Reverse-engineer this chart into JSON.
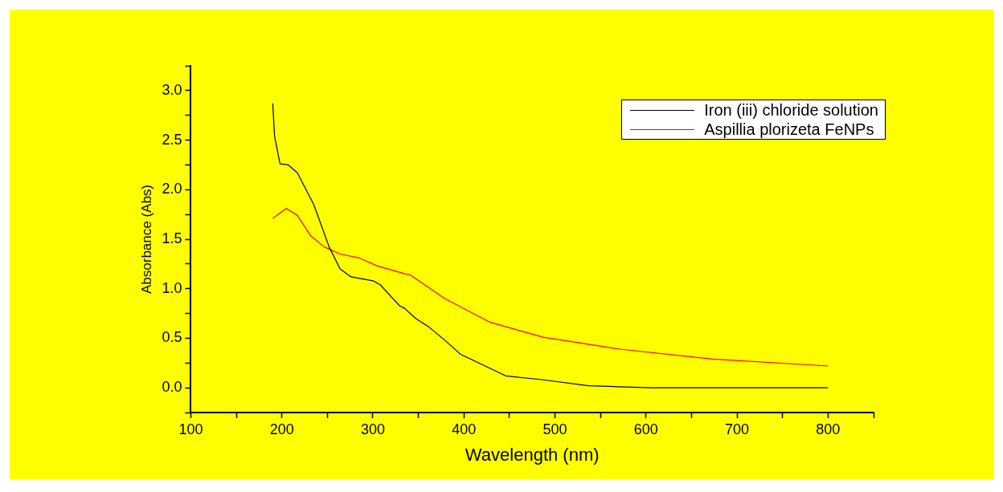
{
  "chart_data": {
    "type": "line",
    "xlabel": "Wavelength (nm)",
    "ylabel": "Absorbance (Abs)",
    "xlim": [
      100,
      850
    ],
    "ylim": [
      -0.25,
      3.25
    ],
    "xticks": [
      100,
      {
        "value": 150,
        "label": null
      },
      200,
      {
        "value": 250,
        "label": null
      },
      300,
      {
        "value": 350,
        "label": null
      },
      400,
      {
        "value": 450,
        "label": null
      },
      500,
      {
        "value": 550,
        "label": null
      },
      600,
      {
        "value": 650,
        "label": null
      },
      700,
      {
        "value": 750,
        "label": null
      },
      800,
      {
        "value": 850,
        "label": null
      }
    ],
    "yticks": [
      {
        "value": -0.25,
        "label": null
      },
      {
        "value": 0,
        "label": "0.0"
      },
      {
        "value": 0.25,
        "label": null
      },
      0.5,
      {
        "value": 0.75,
        "label": null
      },
      {
        "value": 1,
        "label": "1.0"
      },
      {
        "value": 1.25,
        "label": null
      },
      1.5,
      {
        "value": 1.75,
        "label": null
      },
      {
        "value": 2,
        "label": "2.0"
      },
      {
        "value": 2.25,
        "label": null
      },
      2.5,
      {
        "value": 2.75,
        "label": null
      },
      {
        "value": 3,
        "label": "3.0"
      },
      {
        "value": 3.25,
        "label": null
      }
    ],
    "grid": false,
    "legend": "top right",
    "marker": "none",
    "line_style": "solid",
    "series": [
      {
        "name": "Iron (iii) chloride solution",
        "color": "#000000",
        "x": [
          190,
          192,
          198,
          207,
          217,
          235,
          252,
          264,
          276,
          300,
          308,
          329,
          335,
          347,
          362,
          379,
          396,
          446,
          487,
          537,
          605,
          700,
          800
        ],
        "values": [
          2.87,
          2.54,
          2.26,
          2.25,
          2.17,
          1.85,
          1.42,
          1.2,
          1.12,
          1.08,
          1.04,
          0.83,
          0.8,
          0.7,
          0.61,
          0.48,
          0.34,
          0.12,
          0.08,
          0.02,
          0.0,
          0.0,
          0.0
        ]
      },
      {
        "name": "Aspillia plorizeta FeNPs",
        "color": "#ff0000",
        "x": [
          190,
          205,
          217,
          232,
          247,
          264,
          285,
          305,
          335,
          341,
          379,
          429,
          487,
          571,
          673,
          800
        ],
        "values": [
          1.71,
          1.81,
          1.74,
          1.53,
          1.42,
          1.35,
          1.31,
          1.23,
          1.15,
          1.14,
          0.9,
          0.66,
          0.51,
          0.39,
          0.29,
          0.22
        ]
      }
    ]
  }
}
